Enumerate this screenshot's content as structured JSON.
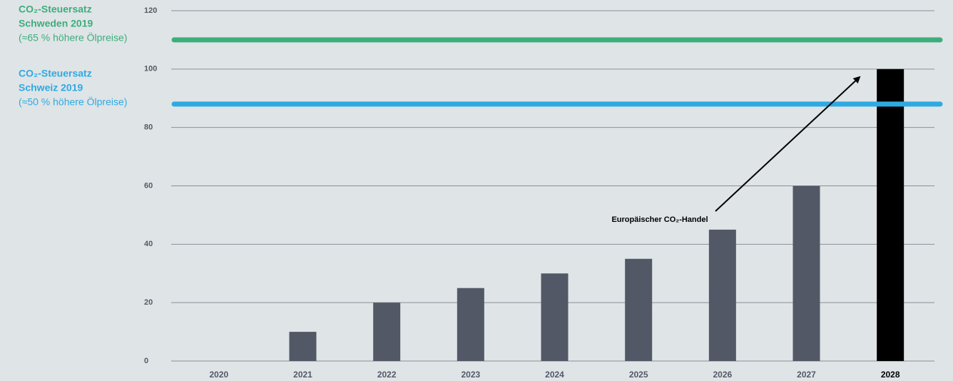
{
  "chart_data": {
    "type": "bar",
    "categories": [
      "2020",
      "2021",
      "2022",
      "2023",
      "2024",
      "2025",
      "2026",
      "2027",
      "2028"
    ],
    "values": [
      0,
      10,
      20,
      25,
      30,
      35,
      45,
      60,
      100
    ],
    "colors": [
      "#525866",
      "#525866",
      "#525866",
      "#525866",
      "#525866",
      "#525866",
      "#525866",
      "#525866",
      "#000000"
    ],
    "ylim": [
      0,
      120
    ],
    "yticks": [
      0,
      20,
      40,
      60,
      80,
      100,
      120
    ],
    "grid": true,
    "reference_lines": [
      {
        "value": 110,
        "color": "#3dae7b",
        "label": [
          "CO₂-Steuersatz",
          "Schweden 2019"
        ],
        "note": "(≈65 % höhere Ölpreise)"
      },
      {
        "value": 88,
        "color": "#2eaae2",
        "label": [
          "CO₂-Steuersatz",
          "Schweiz 2019"
        ],
        "note": "(≈50 % höhere Ölpreise)"
      }
    ],
    "annotation": "Europäischer CO₂-Handel"
  }
}
